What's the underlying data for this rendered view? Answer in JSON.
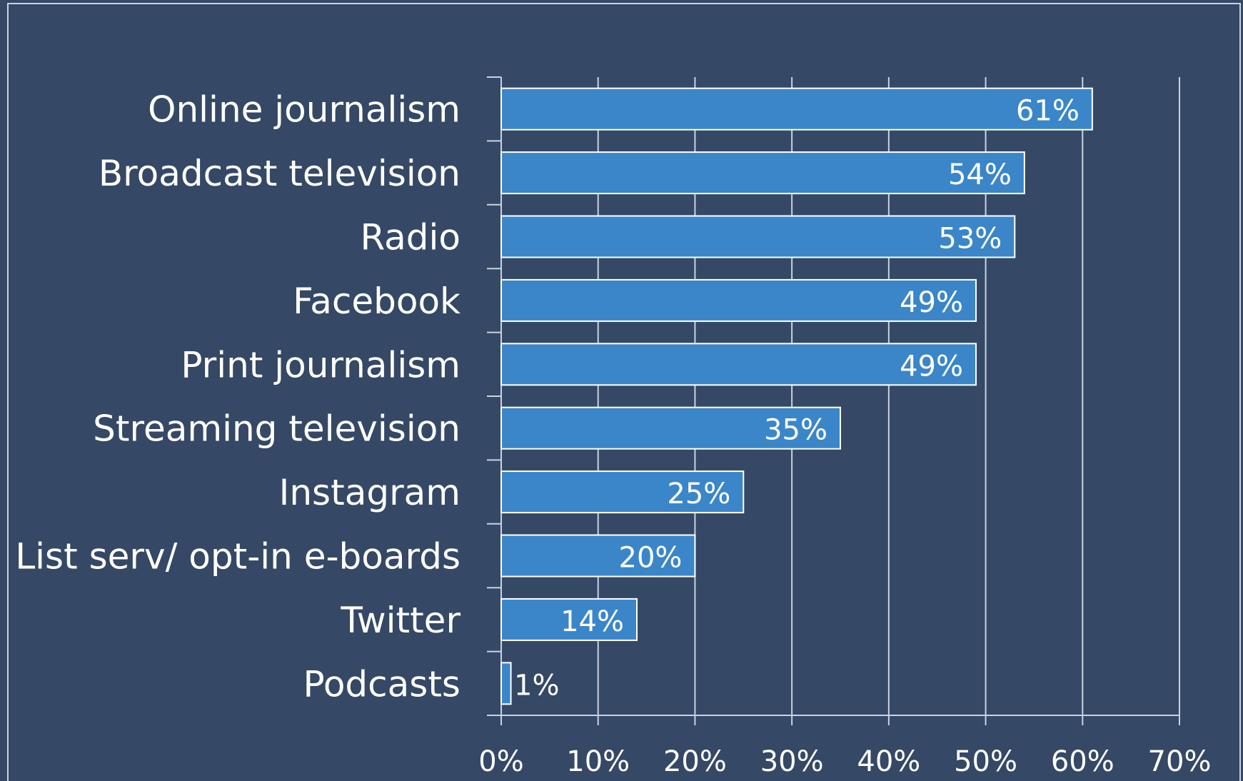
{
  "chart_data": {
    "type": "bar",
    "orientation": "horizontal",
    "categories": [
      "Online journalism",
      "Broadcast television",
      "Radio",
      "Facebook",
      "Print journalism",
      "Streaming television",
      "Instagram",
      "List serv/ opt-in e-boards",
      "Twitter",
      "Podcasts"
    ],
    "values": [
      61,
      54,
      53,
      49,
      49,
      35,
      25,
      20,
      14,
      1
    ],
    "value_labels": [
      "61%",
      "54%",
      "53%",
      "49%",
      "49%",
      "35%",
      "25%",
      "20%",
      "14%",
      "1%"
    ],
    "x_ticks": [
      "0%",
      "10%",
      "20%",
      "30%",
      "40%",
      "50%",
      "60%",
      "70%"
    ],
    "xlim": [
      0,
      70
    ],
    "title": "",
    "xlabel": "",
    "ylabel": "",
    "grid": "vertical",
    "legend": "none",
    "colors": {
      "background": "#354865",
      "bar_fill": "#3a86c8",
      "bar_border": "#ffffff",
      "gridline": "#c9d3e0",
      "text": "#ffffff"
    }
  }
}
